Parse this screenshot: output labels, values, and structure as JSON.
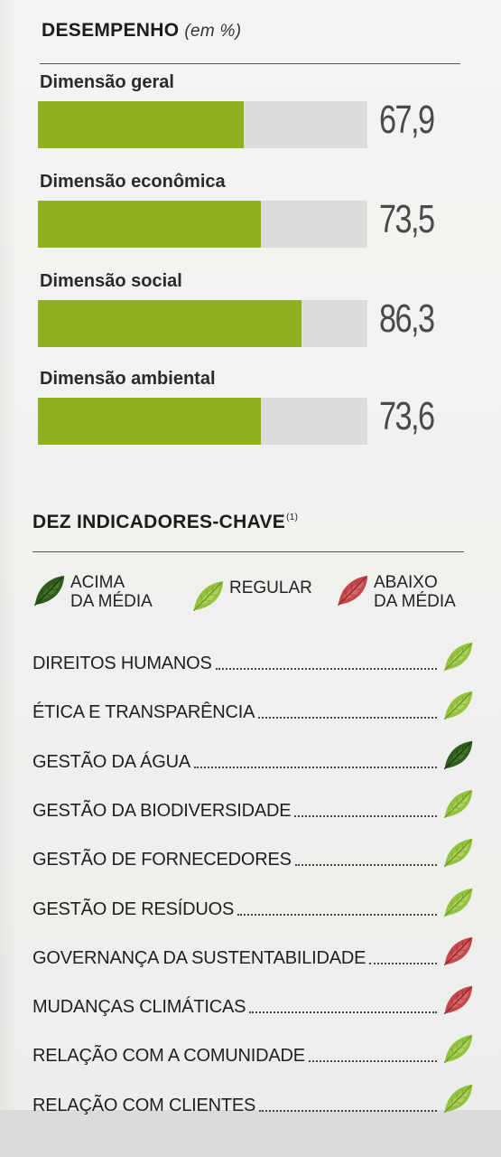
{
  "colors": {
    "bar_fill": "#8fb01f",
    "bar_track": "#dcdddb",
    "leaf_above": "#2e5a1c",
    "leaf_regular": "#8fc03a",
    "leaf_below": "#c4444a"
  },
  "performance": {
    "title": "DESEMPENHO",
    "unit": "(em %)"
  },
  "chart_data": {
    "type": "bar",
    "title": "DESEMPENHO",
    "ylabel": "(em %)",
    "ylim": [
      0,
      100
    ],
    "categories": [
      "Dimensão geral",
      "Dimensão econômica",
      "Dimensão social",
      "Dimensão ambiental"
    ],
    "values": [
      67.9,
      73.5,
      86.3,
      73.6
    ],
    "value_labels": [
      "67,9",
      "73,5",
      "86,3",
      "73,6"
    ]
  },
  "indicators": {
    "title": "DEZ INDICADORES-CHAVE",
    "footnote_mark": "(1)",
    "legend": [
      {
        "key": "above",
        "label": "ACIMA\nDA MÉDIA",
        "icon": "leaf-dark-green-icon"
      },
      {
        "key": "regular",
        "label": "REGULAR",
        "icon": "leaf-light-green-icon"
      },
      {
        "key": "below",
        "label": "ABAIXO\nDA MÉDIA",
        "icon": "leaf-red-icon"
      }
    ],
    "items": [
      {
        "label": "DIREITOS HUMANOS",
        "rating": "regular"
      },
      {
        "label": "ÉTICA E TRANSPARÊNCIA",
        "rating": "regular"
      },
      {
        "label": "GESTÃO DA ÁGUA",
        "rating": "above"
      },
      {
        "label": "GESTÃO DA BIODIVERSIDADE",
        "rating": "regular"
      },
      {
        "label": "GESTÃO DE FORNECEDORES",
        "rating": "regular"
      },
      {
        "label": "GESTÃO DE RESÍDUOS",
        "rating": "regular"
      },
      {
        "label": "GOVERNANÇA DA SUSTENTABILIDADE",
        "rating": "below"
      },
      {
        "label": "MUDANÇAS CLIMÁTICAS",
        "rating": "below"
      },
      {
        "label": "RELAÇÃO COM A COMUNIDADE",
        "rating": "regular"
      },
      {
        "label": "RELAÇÃO COM CLIENTES",
        "rating": "regular"
      }
    ]
  }
}
